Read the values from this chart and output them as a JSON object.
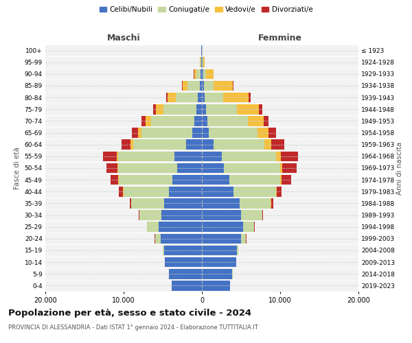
{
  "age_groups": [
    "0-4",
    "5-9",
    "10-14",
    "15-19",
    "20-24",
    "25-29",
    "30-34",
    "35-39",
    "40-44",
    "45-49",
    "50-54",
    "55-59",
    "60-64",
    "65-69",
    "70-74",
    "75-79",
    "80-84",
    "85-89",
    "90-94",
    "95-99",
    "100+"
  ],
  "birth_years": [
    "2019-2023",
    "2014-2018",
    "2009-2013",
    "2004-2008",
    "1999-2003",
    "1994-1998",
    "1989-1993",
    "1984-1988",
    "1979-1983",
    "1974-1978",
    "1969-1973",
    "1964-1968",
    "1959-1963",
    "1954-1958",
    "1949-1953",
    "1944-1948",
    "1939-1943",
    "1934-1938",
    "1929-1933",
    "1924-1928",
    "≤ 1923"
  ],
  "colors": {
    "celibi": "#4472C4",
    "coniugati": "#C5D9A0",
    "vedovi": "#F5C040",
    "divorziati": "#C0292A"
  },
  "legend_labels": [
    "Celibi/Nubili",
    "Coniugati/e",
    "Vedovi/e",
    "Divorziati/e"
  ],
  "maschi": {
    "celibi": [
      3900,
      4200,
      4700,
      4800,
      5300,
      5500,
      5200,
      4800,
      4200,
      3800,
      3200,
      3500,
      2000,
      1200,
      1000,
      700,
      500,
      300,
      200,
      80,
      50
    ],
    "coniugati": [
      2,
      5,
      30,
      200,
      700,
      1500,
      2800,
      4200,
      5800,
      6800,
      7500,
      7200,
      6800,
      6500,
      5500,
      4200,
      2800,
      1500,
      500,
      100,
      30
    ],
    "vedovi": [
      0,
      0,
      0,
      0,
      5,
      5,
      10,
      20,
      50,
      80,
      100,
      200,
      300,
      500,
      700,
      1000,
      1100,
      700,
      300,
      80,
      20
    ],
    "divorziati": [
      0,
      0,
      0,
      5,
      10,
      30,
      80,
      200,
      550,
      1000,
      1400,
      1700,
      1200,
      750,
      500,
      350,
      200,
      80,
      30,
      10,
      5
    ]
  },
  "femmine": {
    "nubili": [
      3600,
      3900,
      4400,
      4500,
      5000,
      5300,
      5000,
      4800,
      4000,
      3500,
      2800,
      2500,
      1500,
      900,
      700,
      500,
      350,
      250,
      150,
      60,
      30
    ],
    "coniugate": [
      2,
      4,
      25,
      180,
      650,
      1400,
      2700,
      4000,
      5500,
      6500,
      7200,
      7000,
      6500,
      6200,
      5200,
      4000,
      2400,
      1200,
      400,
      80,
      20
    ],
    "vedove": [
      0,
      0,
      0,
      0,
      5,
      8,
      15,
      40,
      100,
      200,
      300,
      600,
      900,
      1400,
      2000,
      2800,
      3200,
      2500,
      900,
      200,
      50
    ],
    "divorziate": [
      0,
      0,
      0,
      5,
      15,
      40,
      100,
      250,
      600,
      1200,
      1800,
      2200,
      1600,
      1000,
      650,
      450,
      250,
      100,
      40,
      10,
      5
    ]
  },
  "xlim": 20000,
  "title": "Popolazione per età, sesso e stato civile - 2024",
  "subtitle": "PROVINCIA DI ALESSANDRIA - Dati ISTAT 1° gennaio 2024 - Elaborazione TUTTITALIA.IT",
  "ylabel": "Fasce di età",
  "ylabel_right": "Anni di nascita",
  "header_left": "Maschi",
  "header_right": "Femmine",
  "bg_color": "#FFFFFF",
  "plot_bg_color": "#F2F2F2"
}
